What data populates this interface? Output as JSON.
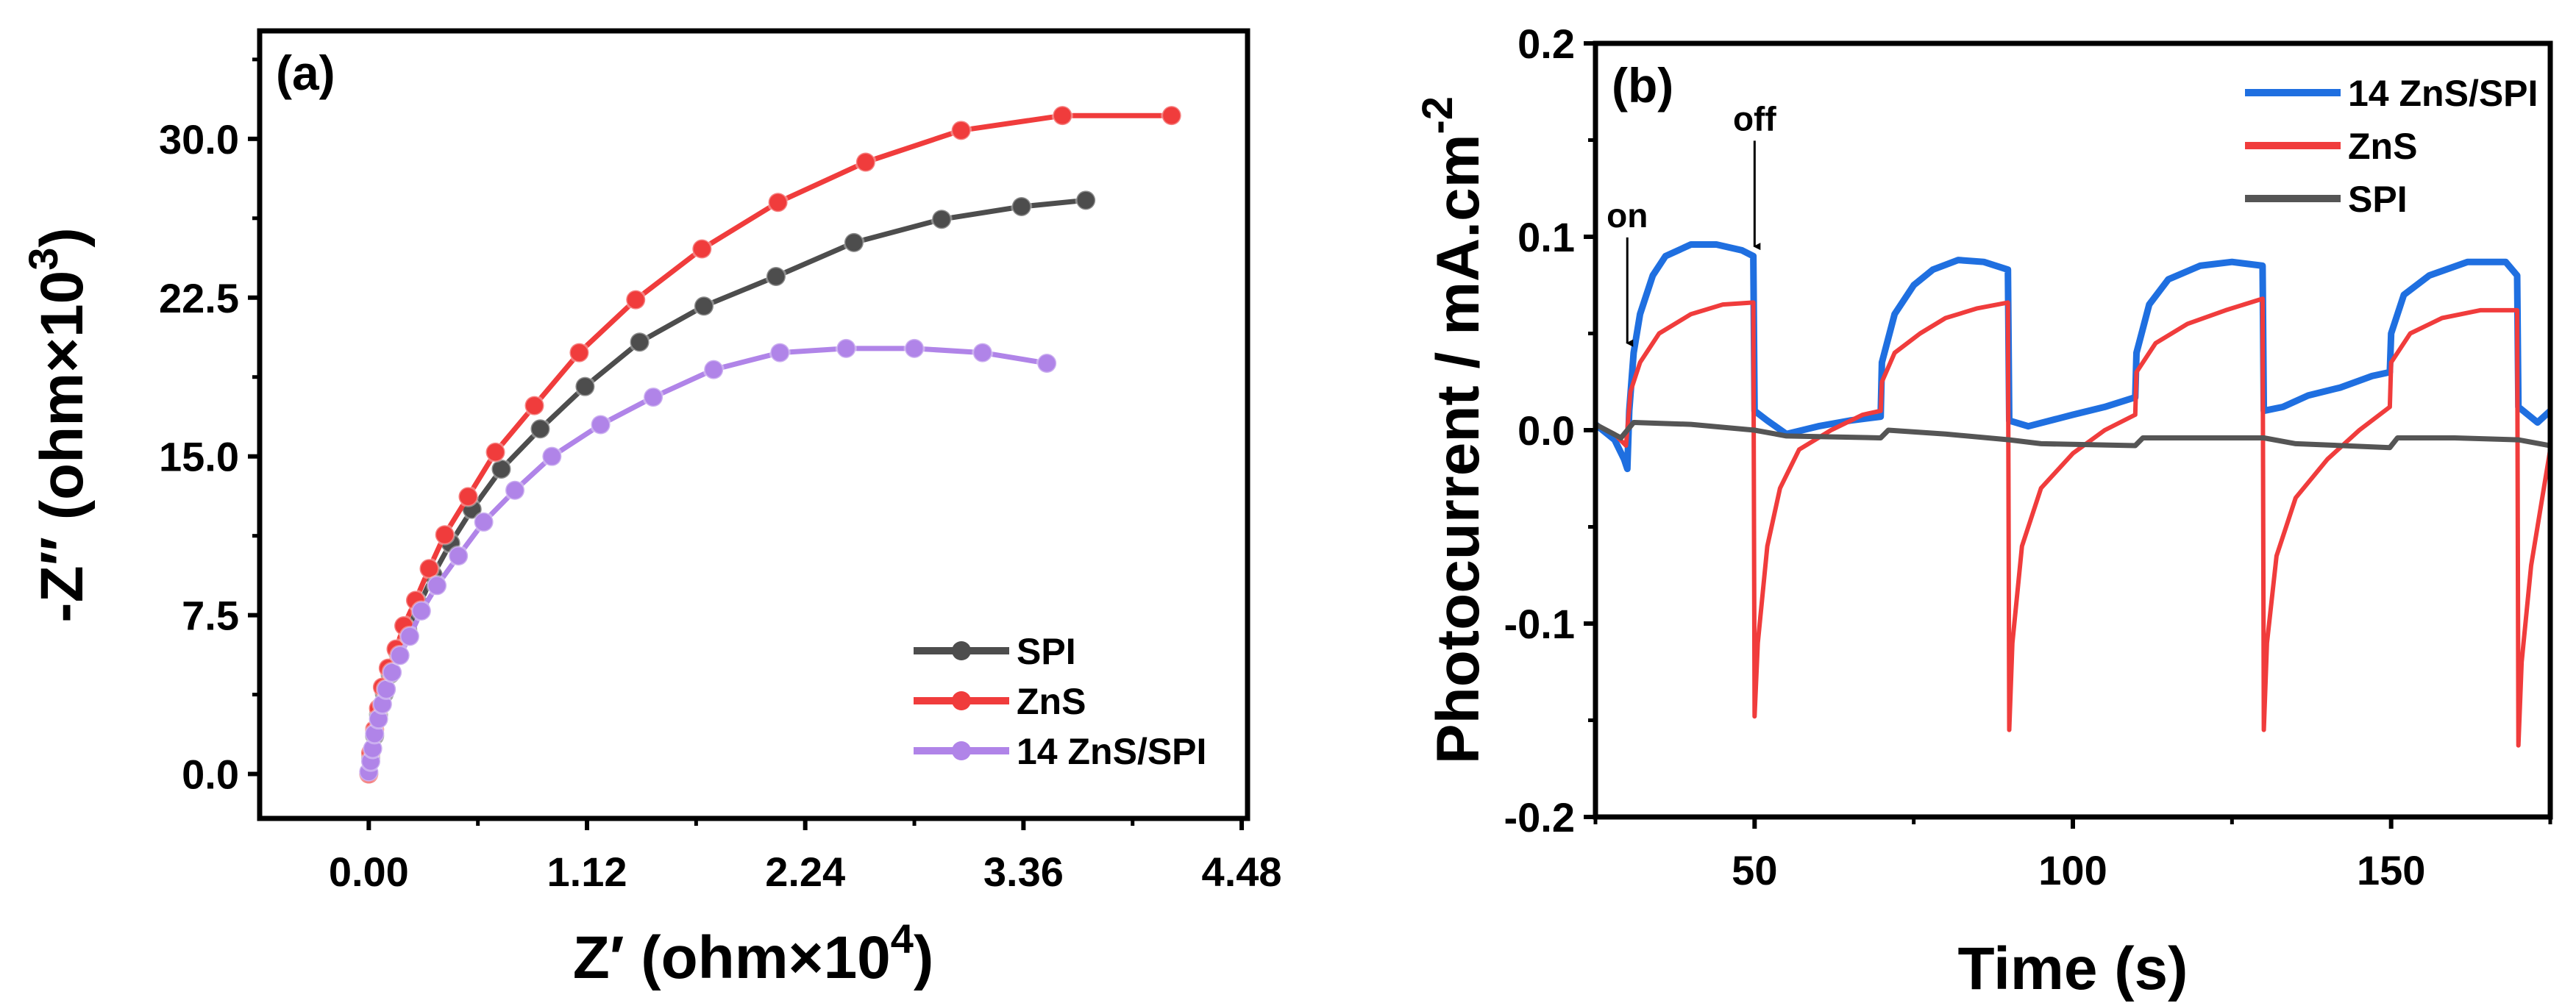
{
  "chart_data": [
    {
      "type": "line",
      "panel_label": "(a)",
      "xlabel": "Z′ (ohm×10",
      "xlabel_sup": "4",
      "xlabel_end": ")",
      "ylabel": "-Z″ (ohm×10",
      "ylabel_sup": "3",
      "ylabel_end": ")",
      "xlim": [
        -0.56,
        4.51
      ],
      "ylim": [
        -2.1,
        35.1
      ],
      "xticks": [
        "0.00",
        "1.12",
        "2.24",
        "3.36",
        "4.48"
      ],
      "xtick_values": [
        0,
        1.12,
        2.24,
        3.36,
        4.48
      ],
      "yticks": [
        "0.0",
        "7.5",
        "15.0",
        "22.5",
        "30.0"
      ],
      "ytick_values": [
        0,
        7.5,
        15,
        22.5,
        30
      ],
      "legend_position": "bottom-right",
      "series": [
        {
          "name": "SPI",
          "color": "#4d4d4d",
          "marker": "circle",
          "x": [
            0,
            0.01,
            0.03,
            0.05,
            0.08,
            0.11,
            0.15,
            0.2,
            0.26,
            0.33,
            0.42,
            0.53,
            0.68,
            0.88,
            1.11,
            1.39,
            1.72,
            2.09,
            2.49,
            2.94,
            3.35,
            3.68
          ],
          "y": [
            0,
            0.8,
            1.8,
            2.8,
            3.8,
            4.7,
            5.7,
            6.8,
            8.0,
            9.4,
            10.9,
            12.5,
            14.4,
            16.3,
            18.3,
            20.4,
            22.1,
            23.5,
            25.1,
            26.2,
            26.8,
            27.1
          ]
        },
        {
          "name": "ZnS",
          "color": "#f03c3c",
          "marker": "circle",
          "x": [
            0,
            0.01,
            0.03,
            0.05,
            0.07,
            0.1,
            0.14,
            0.18,
            0.24,
            0.31,
            0.39,
            0.51,
            0.65,
            0.85,
            1.08,
            1.37,
            1.71,
            2.1,
            2.55,
            3.04,
            3.56,
            4.12
          ],
          "y": [
            0,
            1.0,
            2.1,
            3.1,
            4.1,
            5.0,
            5.9,
            7.0,
            8.2,
            9.7,
            11.3,
            13.1,
            15.2,
            17.4,
            19.9,
            22.4,
            24.8,
            27.0,
            28.9,
            30.4,
            31.1,
            31.1
          ]
        },
        {
          "name": "14 ZnS/SPI",
          "color": "#b084e8",
          "marker": "circle",
          "x": [
            0,
            0.01,
            0.02,
            0.03,
            0.05,
            0.07,
            0.09,
            0.12,
            0.16,
            0.21,
            0.27,
            0.35,
            0.46,
            0.59,
            0.75,
            0.94,
            1.19,
            1.46,
            1.77,
            2.11,
            2.45,
            2.8,
            3.15,
            3.48
          ],
          "y": [
            0.1,
            0.6,
            1.2,
            1.9,
            2.6,
            3.3,
            4.0,
            4.8,
            5.6,
            6.5,
            7.7,
            8.9,
            10.3,
            11.9,
            13.4,
            15.0,
            16.5,
            17.8,
            19.1,
            19.9,
            20.1,
            20.1,
            19.9,
            19.4
          ]
        }
      ]
    },
    {
      "type": "line",
      "panel_label": "(b)",
      "xlabel": "Time (s)",
      "ylabel": "Photocurrent / mA.cm",
      "ylabel_sup": "-2",
      "xlim": [
        25,
        175
      ],
      "ylim": [
        -0.2,
        0.2
      ],
      "xticks": [
        "50",
        "100",
        "150"
      ],
      "xtick_values": [
        50,
        100,
        150
      ],
      "yticks": [
        "-0.2",
        "-0.1",
        "0.0",
        "0.1",
        "0.2"
      ],
      "ytick_values": [
        -0.2,
        -0.1,
        0,
        0.1,
        0.2
      ],
      "legend_position": "top-right",
      "annotations": [
        {
          "text": "on",
          "x": 30,
          "y_text": 0.105,
          "y_arrow_end": 0.045
        },
        {
          "text": "off",
          "x": 50,
          "y_text": 0.155,
          "y_arrow_end": 0.095
        }
      ],
      "series": [
        {
          "name": "14 ZnS/SPI",
          "color": "#1f6fe0",
          "x": [
            25,
            28,
            29.5,
            30,
            30.3,
            31,
            32,
            34,
            36,
            40,
            44,
            48,
            49.8,
            50,
            52,
            55,
            60,
            65,
            69.8,
            70,
            72,
            75,
            78,
            82,
            86,
            89.8,
            90,
            93,
            100,
            105,
            109.8,
            110,
            112,
            115,
            120,
            125,
            129.8,
            130,
            133,
            137,
            142,
            147,
            149.8,
            150,
            152,
            156,
            162,
            168,
            169.8,
            170,
            173,
            175
          ],
          "y": [
            0.003,
            -0.005,
            -0.015,
            -0.02,
            0.01,
            0.04,
            0.06,
            0.08,
            0.09,
            0.096,
            0.096,
            0.093,
            0.09,
            0.01,
            0.005,
            -0.002,
            0.002,
            0.005,
            0.007,
            0.035,
            0.06,
            0.075,
            0.083,
            0.088,
            0.087,
            0.083,
            0.005,
            0.002,
            0.008,
            0.012,
            0.017,
            0.04,
            0.065,
            0.078,
            0.085,
            0.087,
            0.085,
            0.01,
            0.012,
            0.018,
            0.022,
            0.028,
            0.03,
            0.05,
            0.07,
            0.08,
            0.087,
            0.087,
            0.08,
            0.012,
            0.004,
            0.01
          ]
        },
        {
          "name": "ZnS",
          "color": "#f03c3c",
          "x": [
            25,
            28,
            29.8,
            30,
            30.5,
            32,
            35,
            40,
            45,
            49.8,
            50,
            50.5,
            52,
            54,
            57,
            62,
            67,
            69.8,
            70,
            72,
            76,
            80,
            85,
            89.8,
            90,
            90.5,
            92,
            95,
            100,
            105,
            109.8,
            110,
            113,
            118,
            124,
            129.8,
            130,
            130.5,
            132,
            135,
            140,
            145,
            149.8,
            150,
            153,
            158,
            164,
            169.8,
            170,
            170.5,
            172,
            174,
            175
          ],
          "y": [
            0.003,
            -0.002,
            -0.008,
            0.0,
            0.02,
            0.035,
            0.05,
            0.06,
            0.065,
            0.066,
            -0.148,
            -0.11,
            -0.06,
            -0.03,
            -0.01,
            0.0,
            0.008,
            0.01,
            0.025,
            0.04,
            0.05,
            0.058,
            0.063,
            0.066,
            -0.155,
            -0.11,
            -0.06,
            -0.03,
            -0.012,
            0.0,
            0.008,
            0.03,
            0.045,
            0.055,
            0.062,
            0.068,
            -0.155,
            -0.11,
            -0.065,
            -0.035,
            -0.015,
            0.0,
            0.012,
            0.035,
            0.05,
            0.058,
            0.062,
            0.062,
            -0.163,
            -0.12,
            -0.07,
            -0.03,
            -0.01
          ]
        },
        {
          "name": "SPI",
          "color": "#555555",
          "x": [
            25,
            29,
            30,
            31,
            40,
            50,
            55,
            69.8,
            71,
            80,
            90,
            95,
            109.8,
            111,
            120,
            130,
            135,
            149.8,
            151,
            160,
            170,
            175
          ],
          "y": [
            0.003,
            -0.004,
            0.0,
            0.004,
            0.003,
            0.0,
            -0.003,
            -0.004,
            0.0,
            -0.002,
            -0.005,
            -0.007,
            -0.008,
            -0.004,
            -0.004,
            -0.004,
            -0.007,
            -0.009,
            -0.004,
            -0.004,
            -0.005,
            -0.008
          ]
        }
      ]
    }
  ]
}
